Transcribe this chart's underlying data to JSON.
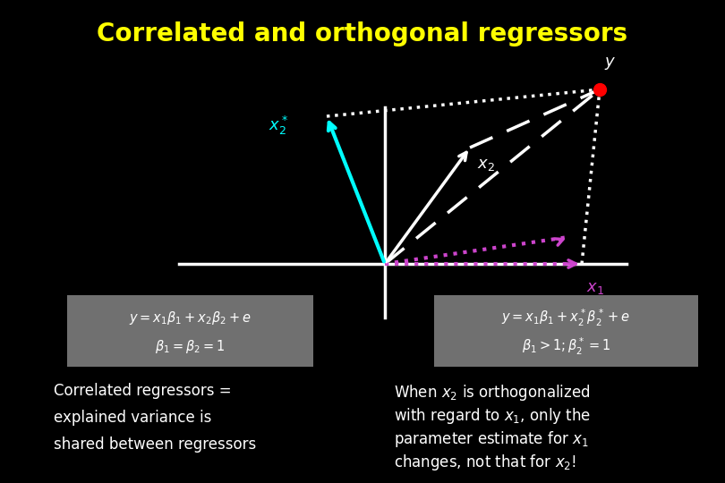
{
  "title": "Correlated and orthogonal regressors",
  "title_color": "#ffff00",
  "title_fontsize": 20,
  "bg_color": "#000000",
  "axis_color": "#ffffff",
  "axis_linewidth": 2.5,
  "x1_color": "#cc44cc",
  "x2_color": "#ffffff",
  "x2star_color": "#00ffff",
  "y_dot_color": "#ff0000",
  "parallelogram_color": "#ffffff",
  "text_color": "#ffffff",
  "formula_bg": "#707070",
  "label_x1": "$x_1$",
  "label_x2": "$x_2$",
  "label_x2star": "$x_2^*$",
  "label_y": "$y$",
  "bottom_text_left_lines": [
    "Correlated regressors =",
    "explained variance is",
    "shared between regressors"
  ],
  "bottom_text_right_lines": [
    "When $x_2$ is orthogonalized",
    "with regard to $x_1$, only the",
    "parameter estimate for $x_1$",
    "changes, not that for $x_2$!"
  ]
}
